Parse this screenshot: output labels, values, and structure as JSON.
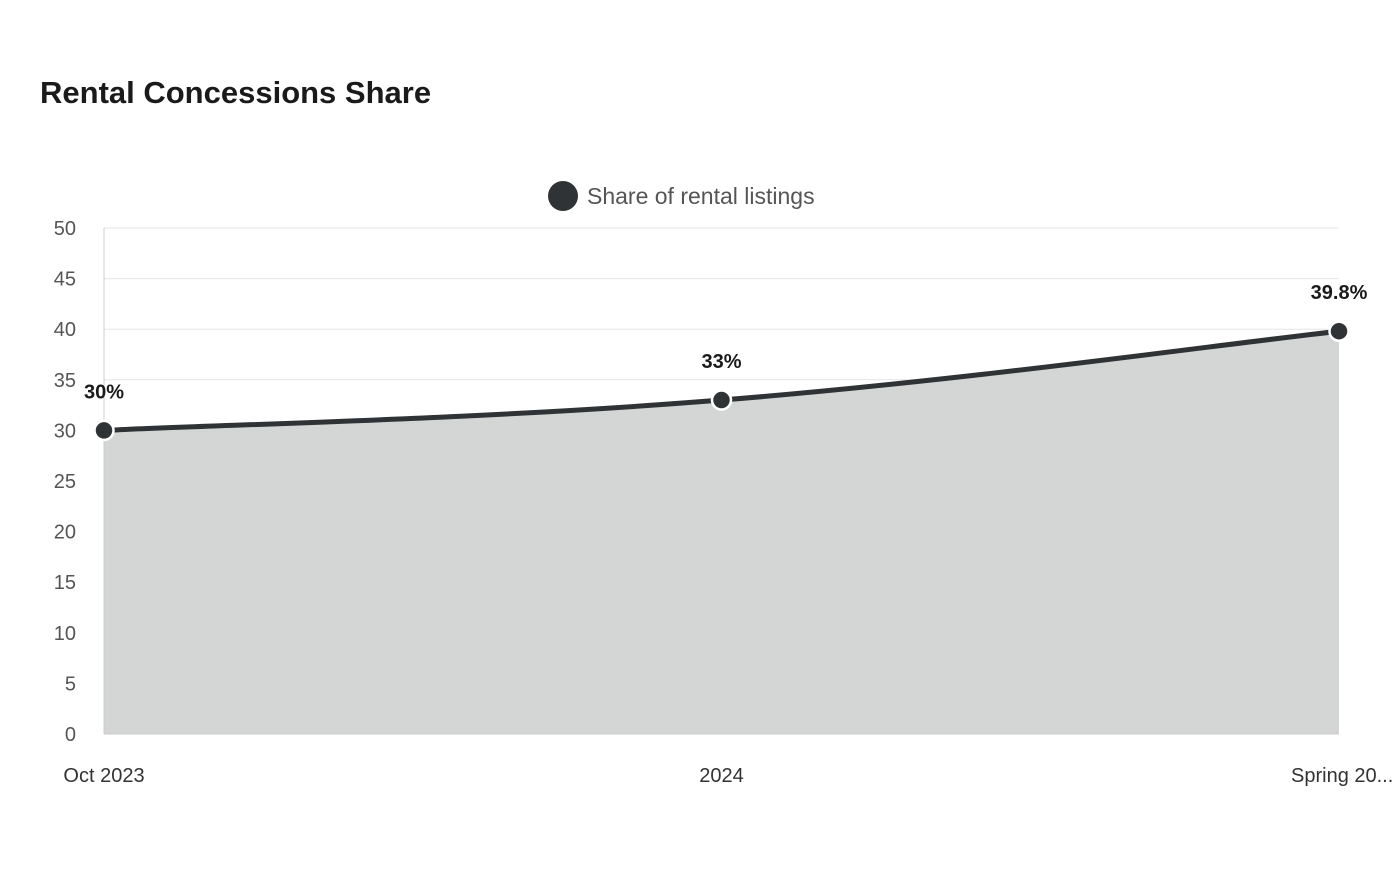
{
  "chart_data": {
    "type": "area",
    "title": "Rental Concessions Share",
    "categories": [
      "Oct 2023",
      "2024",
      "Spring 20..."
    ],
    "series": [
      {
        "name": "Share of rental listings",
        "values": [
          30,
          33,
          39.8
        ],
        "data_labels": [
          "30%",
          "33%",
          "39.8%"
        ]
      }
    ],
    "ylim": [
      0,
      50
    ],
    "yticks": [
      0,
      5,
      10,
      15,
      20,
      25,
      30,
      35,
      40,
      45,
      50
    ],
    "grid": true,
    "legend_position": "top-center",
    "colors": {
      "line": "#2f3336",
      "fill": "#d4d5d5",
      "marker_stroke": "#ffffff"
    }
  }
}
